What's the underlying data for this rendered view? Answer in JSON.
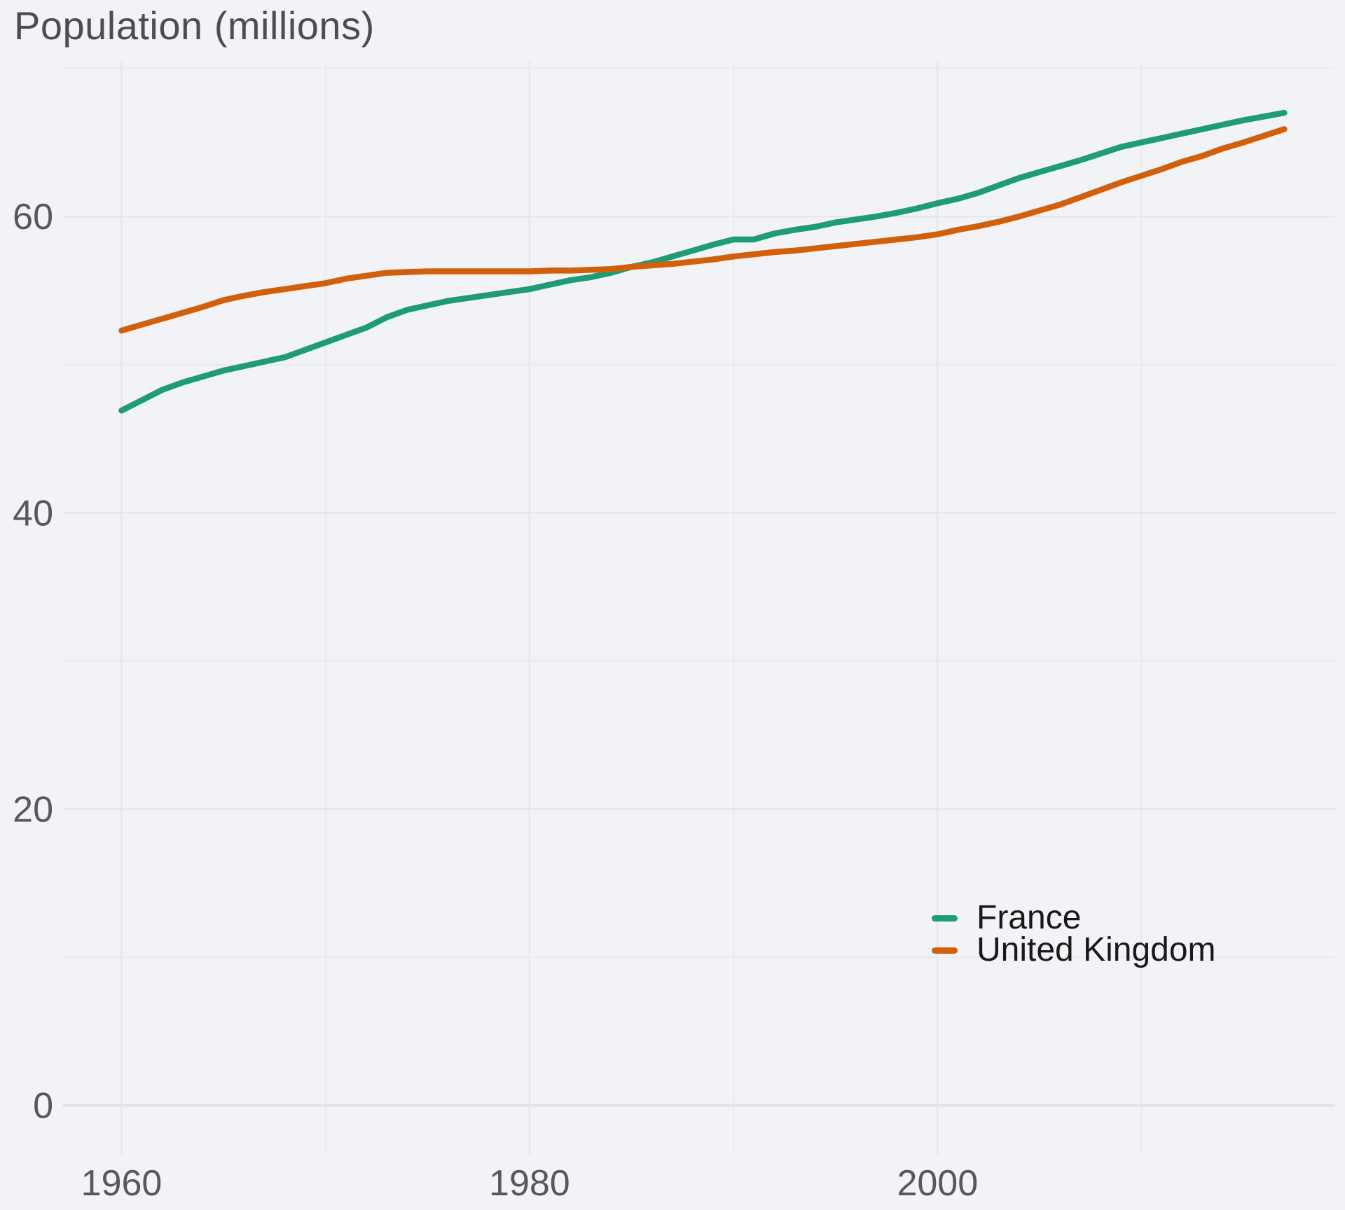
{
  "title": "Population (millions)",
  "colors": {
    "background": "#f2f3f7",
    "grid_major": "#e5e6e9",
    "grid_minor": "#eaebee",
    "zero_line": "#e1e2e6",
    "title_text": "#4b4d4f",
    "tick_text": "#57585a",
    "legend_text": "#191919",
    "france_line": "#1d9c76",
    "uk_line": "#d2600b"
  },
  "legend": {
    "items": [
      {
        "label": "France",
        "color": "#1d9c76"
      },
      {
        "label": "United Kingdom",
        "color": "#d2600b"
      }
    ]
  },
  "chart_data": {
    "type": "line",
    "title": "Population (millions)",
    "xlabel": "",
    "ylabel": "Population (millions)",
    "grid": true,
    "legend_position": "lower right",
    "xlim": [
      1957.2,
      2019.5
    ],
    "ylim": [
      -3.5,
      70.5
    ],
    "x_ticks_labeled": [
      1960,
      1980,
      2000
    ],
    "x_gridlines": [
      1960,
      1970,
      1980,
      1990,
      2000,
      2010
    ],
    "y_ticks_labeled": [
      0,
      20,
      40,
      60
    ],
    "y_gridlines": [
      0,
      10,
      20,
      30,
      40,
      50,
      60,
      70
    ],
    "x": [
      1960,
      1961,
      1962,
      1963,
      1964,
      1965,
      1966,
      1967,
      1968,
      1969,
      1970,
      1971,
      1972,
      1973,
      1974,
      1975,
      1976,
      1977,
      1978,
      1979,
      1980,
      1981,
      1982,
      1983,
      1984,
      1985,
      1986,
      1987,
      1988,
      1989,
      1990,
      1991,
      1992,
      1993,
      1994,
      1995,
      1996,
      1997,
      1998,
      1999,
      2000,
      2001,
      2002,
      2003,
      2004,
      2005,
      2006,
      2007,
      2008,
      2009,
      2010,
      2011,
      2012,
      2013,
      2014,
      2015,
      2016,
      2017
    ],
    "series": [
      {
        "name": "France",
        "color": "#1d9c76",
        "values": [
          46.9,
          47.6,
          48.3,
          48.8,
          49.2,
          49.6,
          49.9,
          50.2,
          50.5,
          51.0,
          51.5,
          52.0,
          52.5,
          53.2,
          53.7,
          54.0,
          54.3,
          54.5,
          54.7,
          54.9,
          55.1,
          55.4,
          55.7,
          55.9,
          56.2,
          56.6,
          56.9,
          57.3,
          57.7,
          58.1,
          58.45,
          58.45,
          58.85,
          59.1,
          59.3,
          59.6,
          59.8,
          60.0,
          60.25,
          60.55,
          60.9,
          61.2,
          61.6,
          62.1,
          62.6,
          63.0,
          63.4,
          63.8,
          64.25,
          64.7,
          65.0,
          65.3,
          65.6,
          65.9,
          66.2,
          66.5,
          66.75,
          67.0
        ]
      },
      {
        "name": "United Kingdom",
        "color": "#d2600b",
        "values": [
          52.3,
          52.7,
          53.1,
          53.5,
          53.9,
          54.35,
          54.65,
          54.9,
          55.1,
          55.3,
          55.5,
          55.8,
          56.0,
          56.2,
          56.25,
          56.3,
          56.3,
          56.3,
          56.3,
          56.3,
          56.3,
          56.35,
          56.35,
          56.4,
          56.45,
          56.6,
          56.7,
          56.8,
          56.95,
          57.1,
          57.3,
          57.45,
          57.6,
          57.7,
          57.85,
          58.0,
          58.15,
          58.3,
          58.45,
          58.6,
          58.8,
          59.1,
          59.35,
          59.65,
          60.0,
          60.4,
          60.8,
          61.3,
          61.8,
          62.3,
          62.75,
          63.2,
          63.7,
          64.1,
          64.6,
          65.0,
          65.45,
          65.9
        ]
      }
    ]
  }
}
